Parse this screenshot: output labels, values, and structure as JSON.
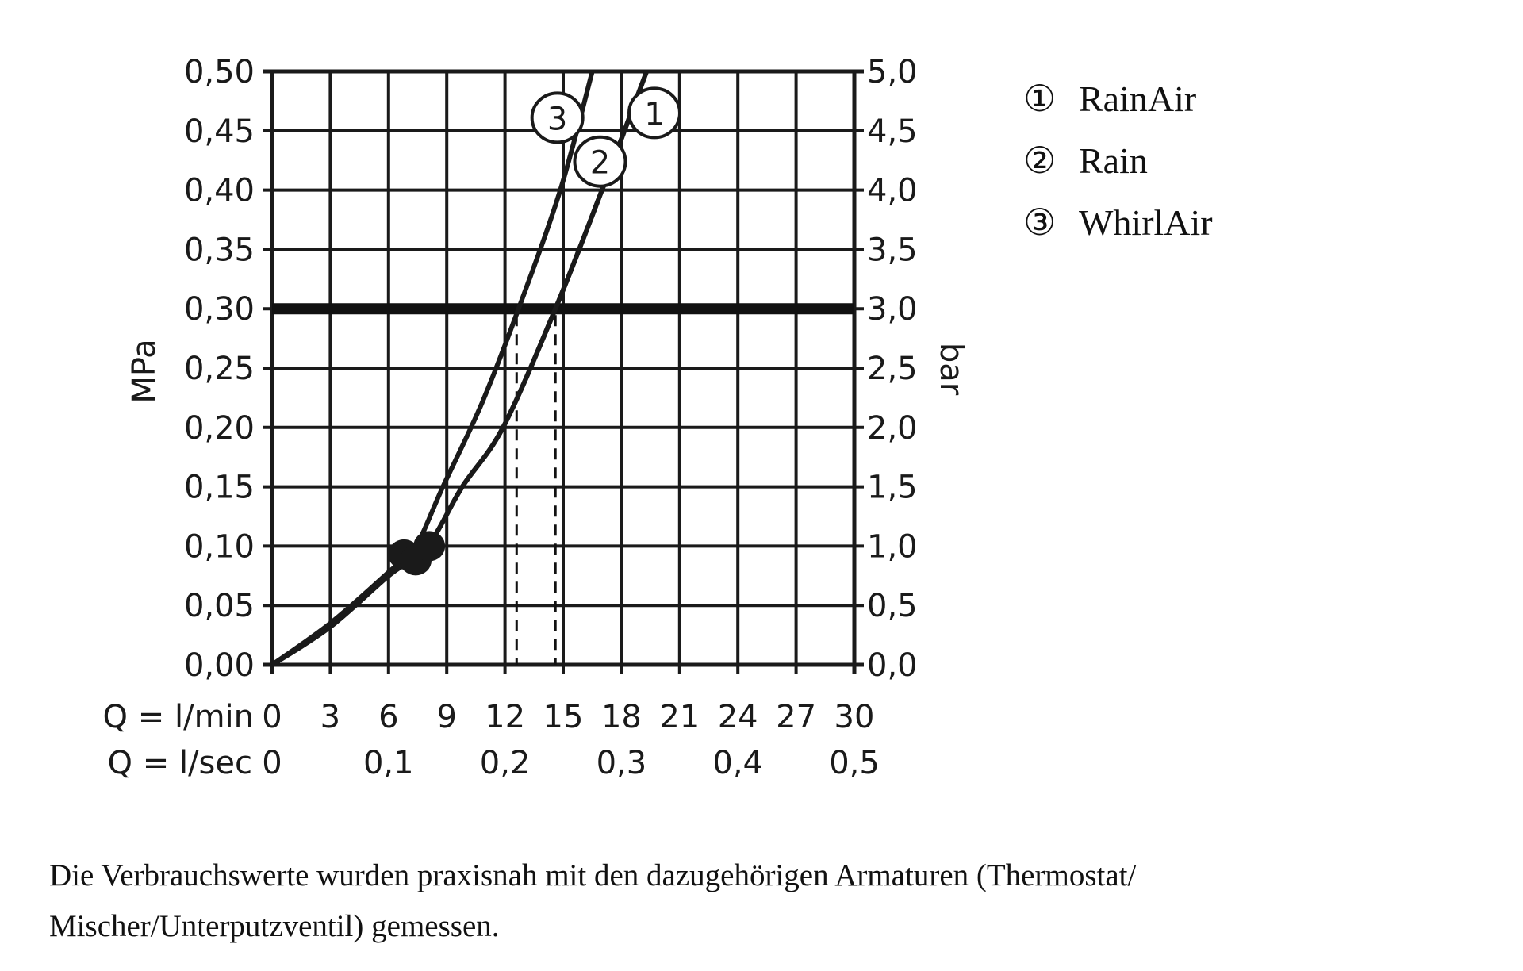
{
  "chart_data": {
    "type": "line",
    "x_axis": {
      "label_primary": "Q = l/min",
      "label_secondary": "Q = l/sec",
      "range": [
        0,
        30
      ],
      "ticks_primary": [
        "0",
        "3",
        "6",
        "9",
        "12",
        "15",
        "18",
        "21",
        "24",
        "27",
        "30"
      ],
      "ticks_secondary": [
        {
          "value": 0,
          "label": "0"
        },
        {
          "value": 6,
          "label": "0,1"
        },
        {
          "value": 12,
          "label": "0,2"
        },
        {
          "value": 18,
          "label": "0,3"
        },
        {
          "value": 24,
          "label": "0,4"
        },
        {
          "value": 30,
          "label": "0,5"
        }
      ]
    },
    "y_axis_left": {
      "label": "MPa",
      "range": [
        0,
        0.5
      ],
      "ticks": [
        "0,00",
        "0,05",
        "0,10",
        "0,15",
        "0,20",
        "0,25",
        "0,30",
        "0,35",
        "0,40",
        "0,45",
        "0,50"
      ]
    },
    "y_axis_right": {
      "label": "bar",
      "range": [
        0,
        5
      ],
      "ticks": [
        "0,0",
        "0,5",
        "1,0",
        "1,5",
        "2,0",
        "2,5",
        "3,0",
        "3,5",
        "4,0",
        "4,5",
        "5,0"
      ]
    },
    "grid": true,
    "reference_line": {
      "y": 0.3
    },
    "dashed_drops": [
      12.6,
      14.6
    ],
    "operating_points": [
      [
        6.8,
        0.093
      ],
      [
        7.4,
        0.088
      ],
      [
        8.1,
        0.1
      ]
    ],
    "series": [
      {
        "name": "RainAir",
        "marker": "1",
        "x": [
          0,
          3,
          6,
          8,
          9.8,
          11.9,
          14.6,
          17.0,
          19.3
        ],
        "y": [
          0,
          0.032,
          0.075,
          0.1,
          0.15,
          0.2,
          0.3,
          0.4,
          0.5
        ],
        "label_at": [
          19.7,
          0.465
        ]
      },
      {
        "name": "Rain",
        "marker": "2",
        "x": [
          0,
          3,
          6,
          8,
          9.8,
          11.9,
          14.6,
          17.0,
          19.3
        ],
        "y": [
          0,
          0.032,
          0.075,
          0.1,
          0.15,
          0.2,
          0.3,
          0.4,
          0.5
        ],
        "label_at": [
          16.9,
          0.424
        ]
      },
      {
        "name": "WhirlAir",
        "marker": "3",
        "x": [
          0,
          3,
          6,
          7.4,
          8.8,
          10.8,
          12.7,
          14.85,
          16.5
        ],
        "y": [
          0,
          0.035,
          0.078,
          0.1,
          0.15,
          0.22,
          0.3,
          0.4,
          0.5
        ],
        "label_at": [
          14.7,
          0.461
        ]
      }
    ],
    "legend": {
      "placement": "top-right",
      "entries": [
        {
          "marker": "①",
          "name": "RainAir"
        },
        {
          "marker": "②",
          "name": "Rain"
        },
        {
          "marker": "③",
          "name": "WhirlAir"
        }
      ]
    }
  },
  "note": "Die Verbrauchswerte wurden praxisnah mit den dazugehörigen Armaturen (Thermostat/ Mischer/Unterputzventil) gemessen."
}
